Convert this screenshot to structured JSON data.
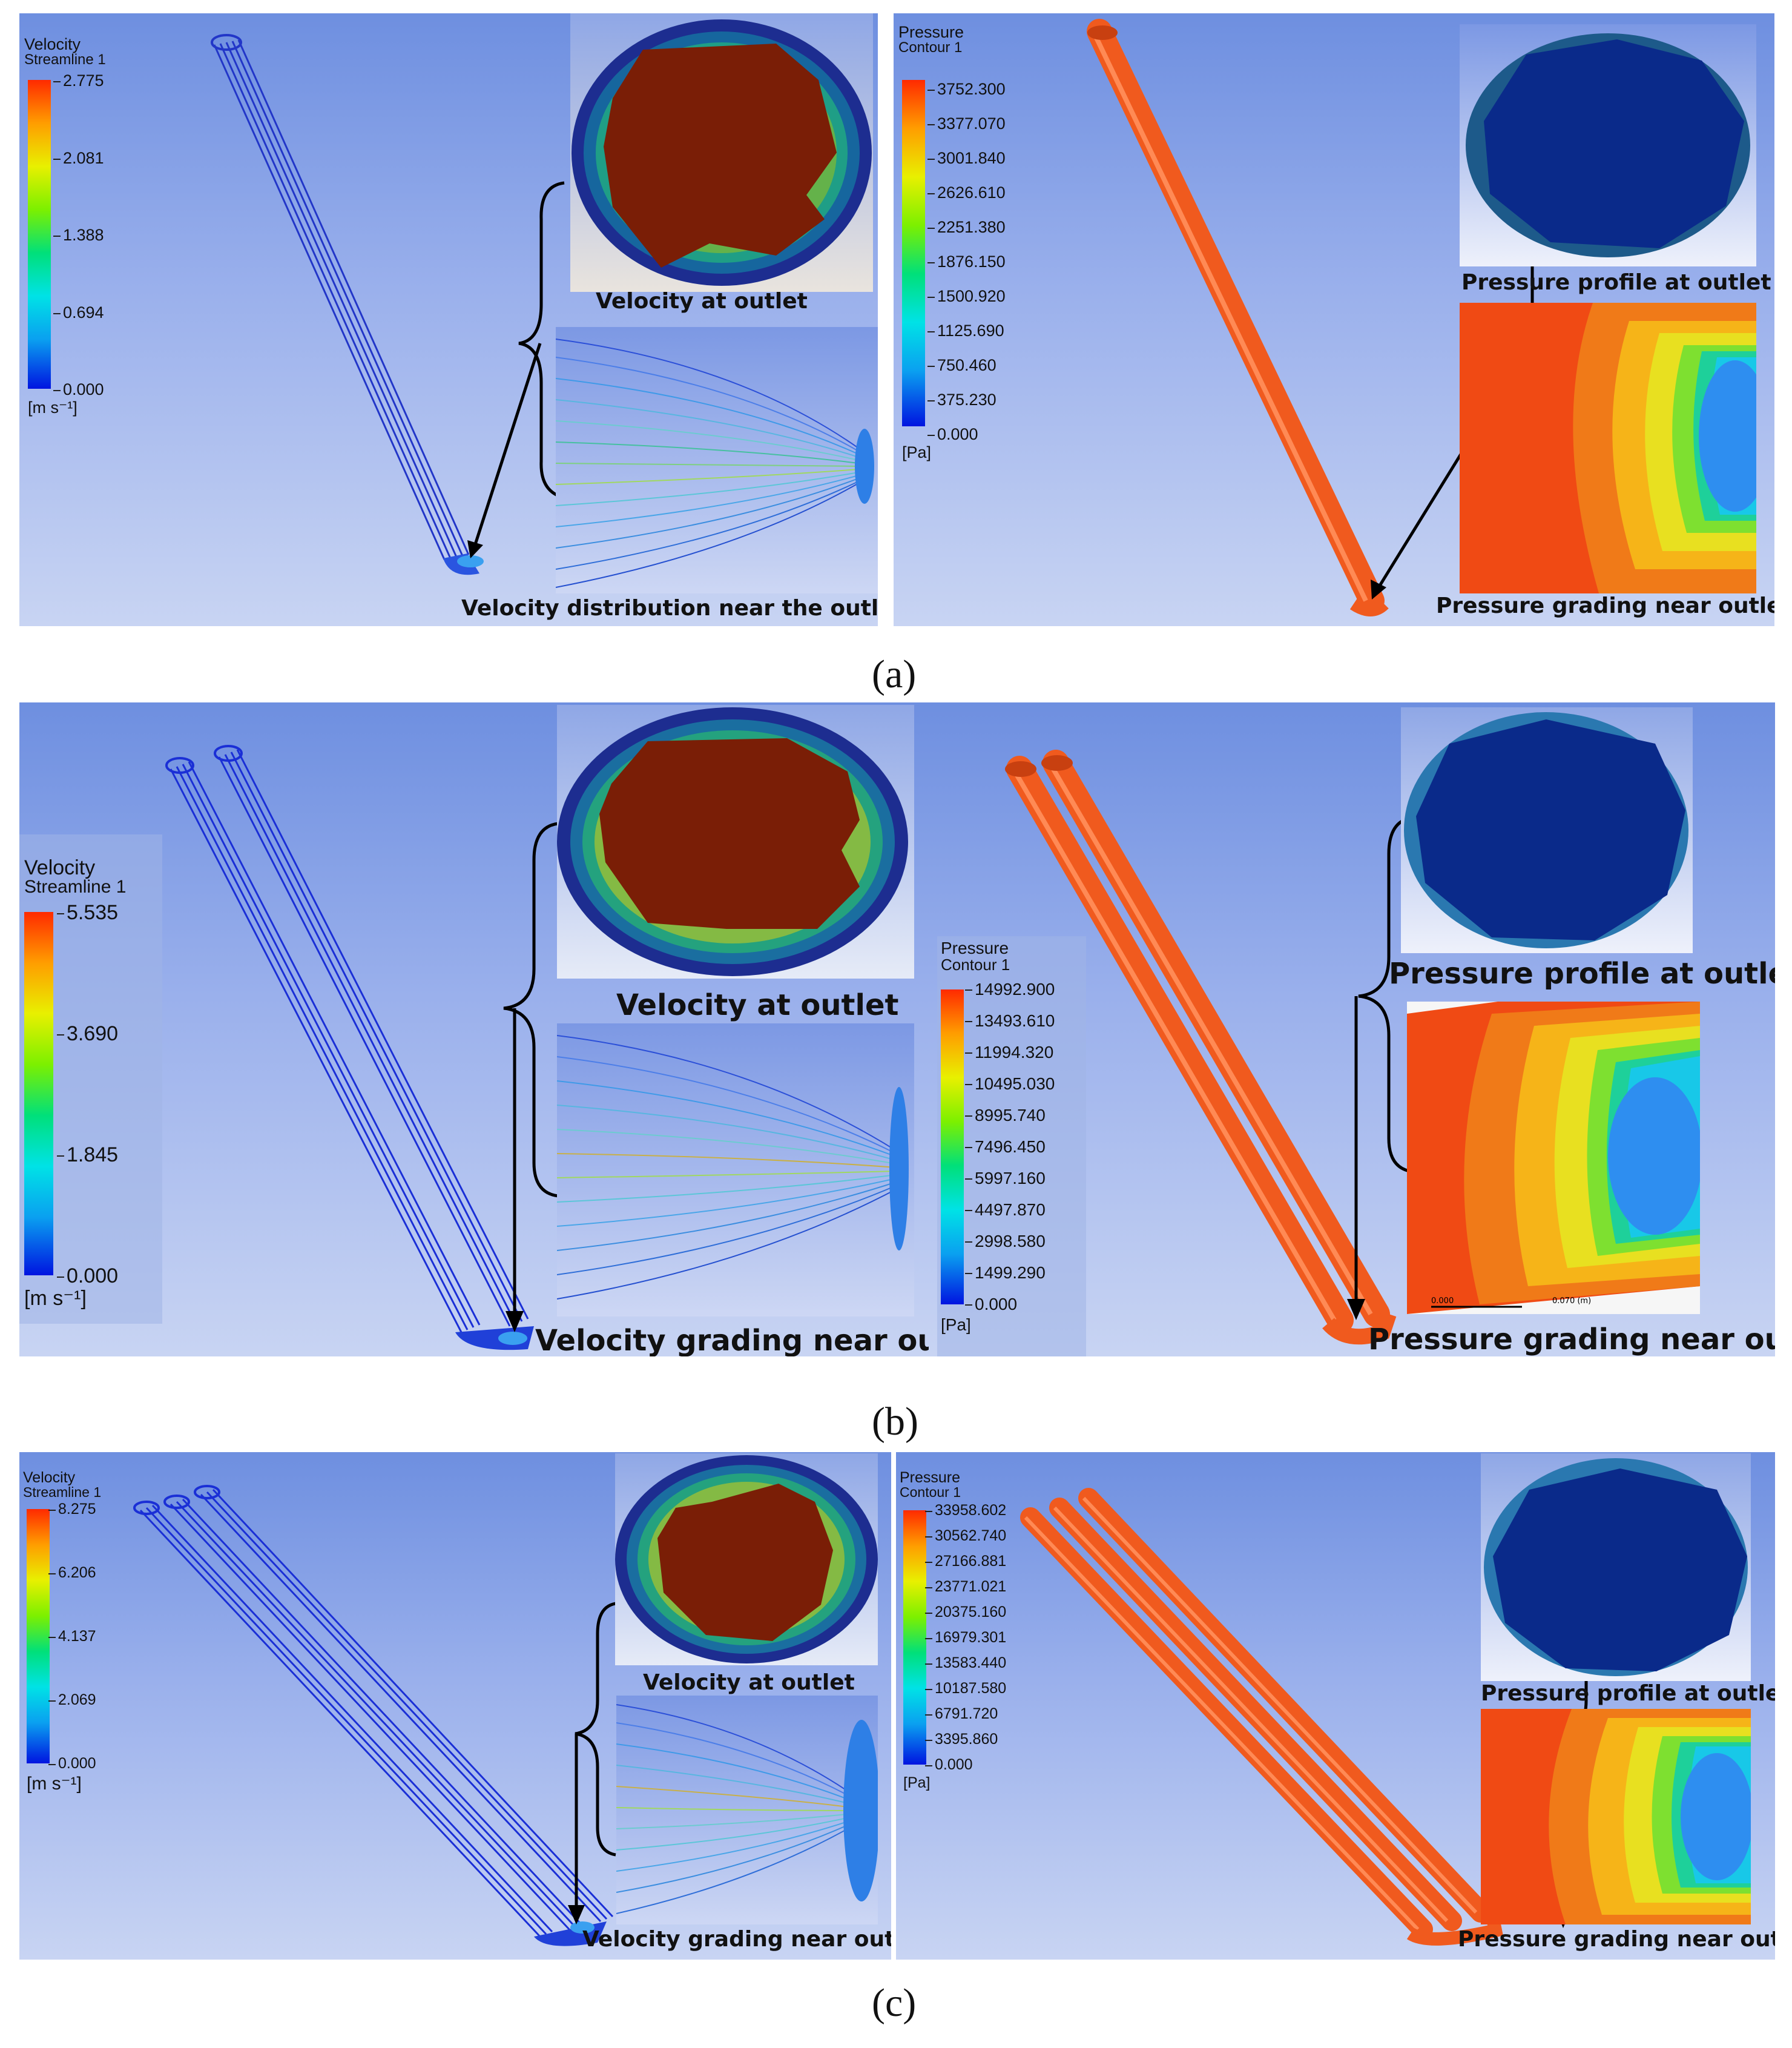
{
  "subfigure_labels": [
    "(a)",
    "(b)",
    "(c)"
  ],
  "rows": [
    {
      "velocity": {
        "legend_title_1": "Velocity",
        "legend_title_2": "Streamline 1",
        "ticks": [
          "2.775",
          "2.081",
          "1.388",
          "0.694",
          "0.000"
        ],
        "unit": "[m s⁻¹]",
        "outlet_caption": "Velocity at outlet",
        "near_caption": "Velocity distribution near the outlet"
      },
      "pressure": {
        "legend_title_1": "Pressure",
        "legend_title_2": "Contour 1",
        "ticks": [
          "3752.300",
          "3377.070",
          "3001.840",
          "2626.610",
          "2251.380",
          "1876.150",
          "1500.920",
          "1125.690",
          "750.460",
          "375.230",
          "0.000"
        ],
        "unit": "[Pa]",
        "outlet_caption": "Pressure profile at outlet",
        "near_caption": "Pressure grading near outlet"
      }
    },
    {
      "velocity": {
        "legend_title_1": "Velocity",
        "legend_title_2": "Streamline 1",
        "ticks": [
          "5.535",
          "3.690",
          "1.845",
          "0.000"
        ],
        "unit": "[m s⁻¹]",
        "outlet_caption": "Velocity at outlet",
        "near_caption": "Velocity grading near outlet"
      },
      "pressure": {
        "legend_title_1": "Pressure",
        "legend_title_2": "Contour 1",
        "ticks": [
          "14992.900",
          "13493.610",
          "11994.320",
          "10495.030",
          "8995.740",
          "7496.450",
          "5997.160",
          "4497.870",
          "2998.580",
          "1499.290",
          "0.000"
        ],
        "unit": "[Pa]",
        "outlet_caption": "Pressure profile at outlet",
        "near_caption": "Pressure grading near outlet",
        "scale_labels": [
          "0.000",
          "0.070  (m)"
        ]
      }
    },
    {
      "velocity": {
        "legend_title_1": "Velocity",
        "legend_title_2": "Streamline 1",
        "ticks": [
          "8.275",
          "6.206",
          "4.137",
          "2.069",
          "0.000"
        ],
        "unit": "[m s⁻¹]",
        "outlet_caption": "Velocity at outlet",
        "near_caption": "Velocity grading near outlet"
      },
      "pressure": {
        "legend_title_1": "Pressure",
        "legend_title_2": "Contour 1",
        "ticks": [
          "33958.602",
          "30562.740",
          "27166.881",
          "23771.021",
          "20375.160",
          "16979.301",
          "13583.440",
          "10187.580",
          "6791.720",
          "3395.860",
          "0.000"
        ],
        "unit": "[Pa]",
        "outlet_caption": "Pressure profile at outlet",
        "near_caption": "Pressure grading near outlet"
      }
    }
  ],
  "colors": {
    "pipe_pressure": "#f05a1e",
    "pipe_velocity": "#1a2fd6",
    "outlet_core_velocity": "#7a1e06",
    "outlet_core_pressure": "#0a2a8a"
  }
}
